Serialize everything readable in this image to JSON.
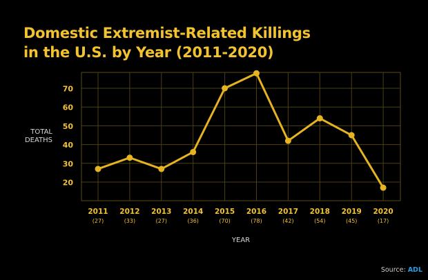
{
  "chart_data": {
    "type": "line",
    "title_lines": [
      "Domestic Extremist-Related Killings",
      "in the U.S. by Year (2011-2020)"
    ],
    "xlabel": "YEAR",
    "ylabel_lines": [
      "TOTAL",
      "DEATHS"
    ],
    "categories": [
      "2011",
      "2012",
      "2013",
      "2014",
      "2015",
      "2016",
      "2017",
      "2018",
      "2019",
      "2020"
    ],
    "value_labels": [
      "(27)",
      "(33)",
      "(27)",
      "(36)",
      "(70)",
      "(78)",
      "(42)",
      "(54)",
      "(45)",
      "(17)"
    ],
    "values": [
      27,
      33,
      27,
      36,
      70,
      78,
      42,
      54,
      45,
      17
    ],
    "yticks": [
      20,
      30,
      40,
      50,
      60,
      70
    ],
    "ylim": [
      10,
      78
    ],
    "grid": true,
    "colors": {
      "line": "#e6b422",
      "grid": "#4d3f12",
      "text": "#f2c230",
      "label": "#d8d8d8"
    }
  },
  "source": {
    "label": "Source:",
    "name": "ADL",
    "color": "#2a9be0"
  }
}
